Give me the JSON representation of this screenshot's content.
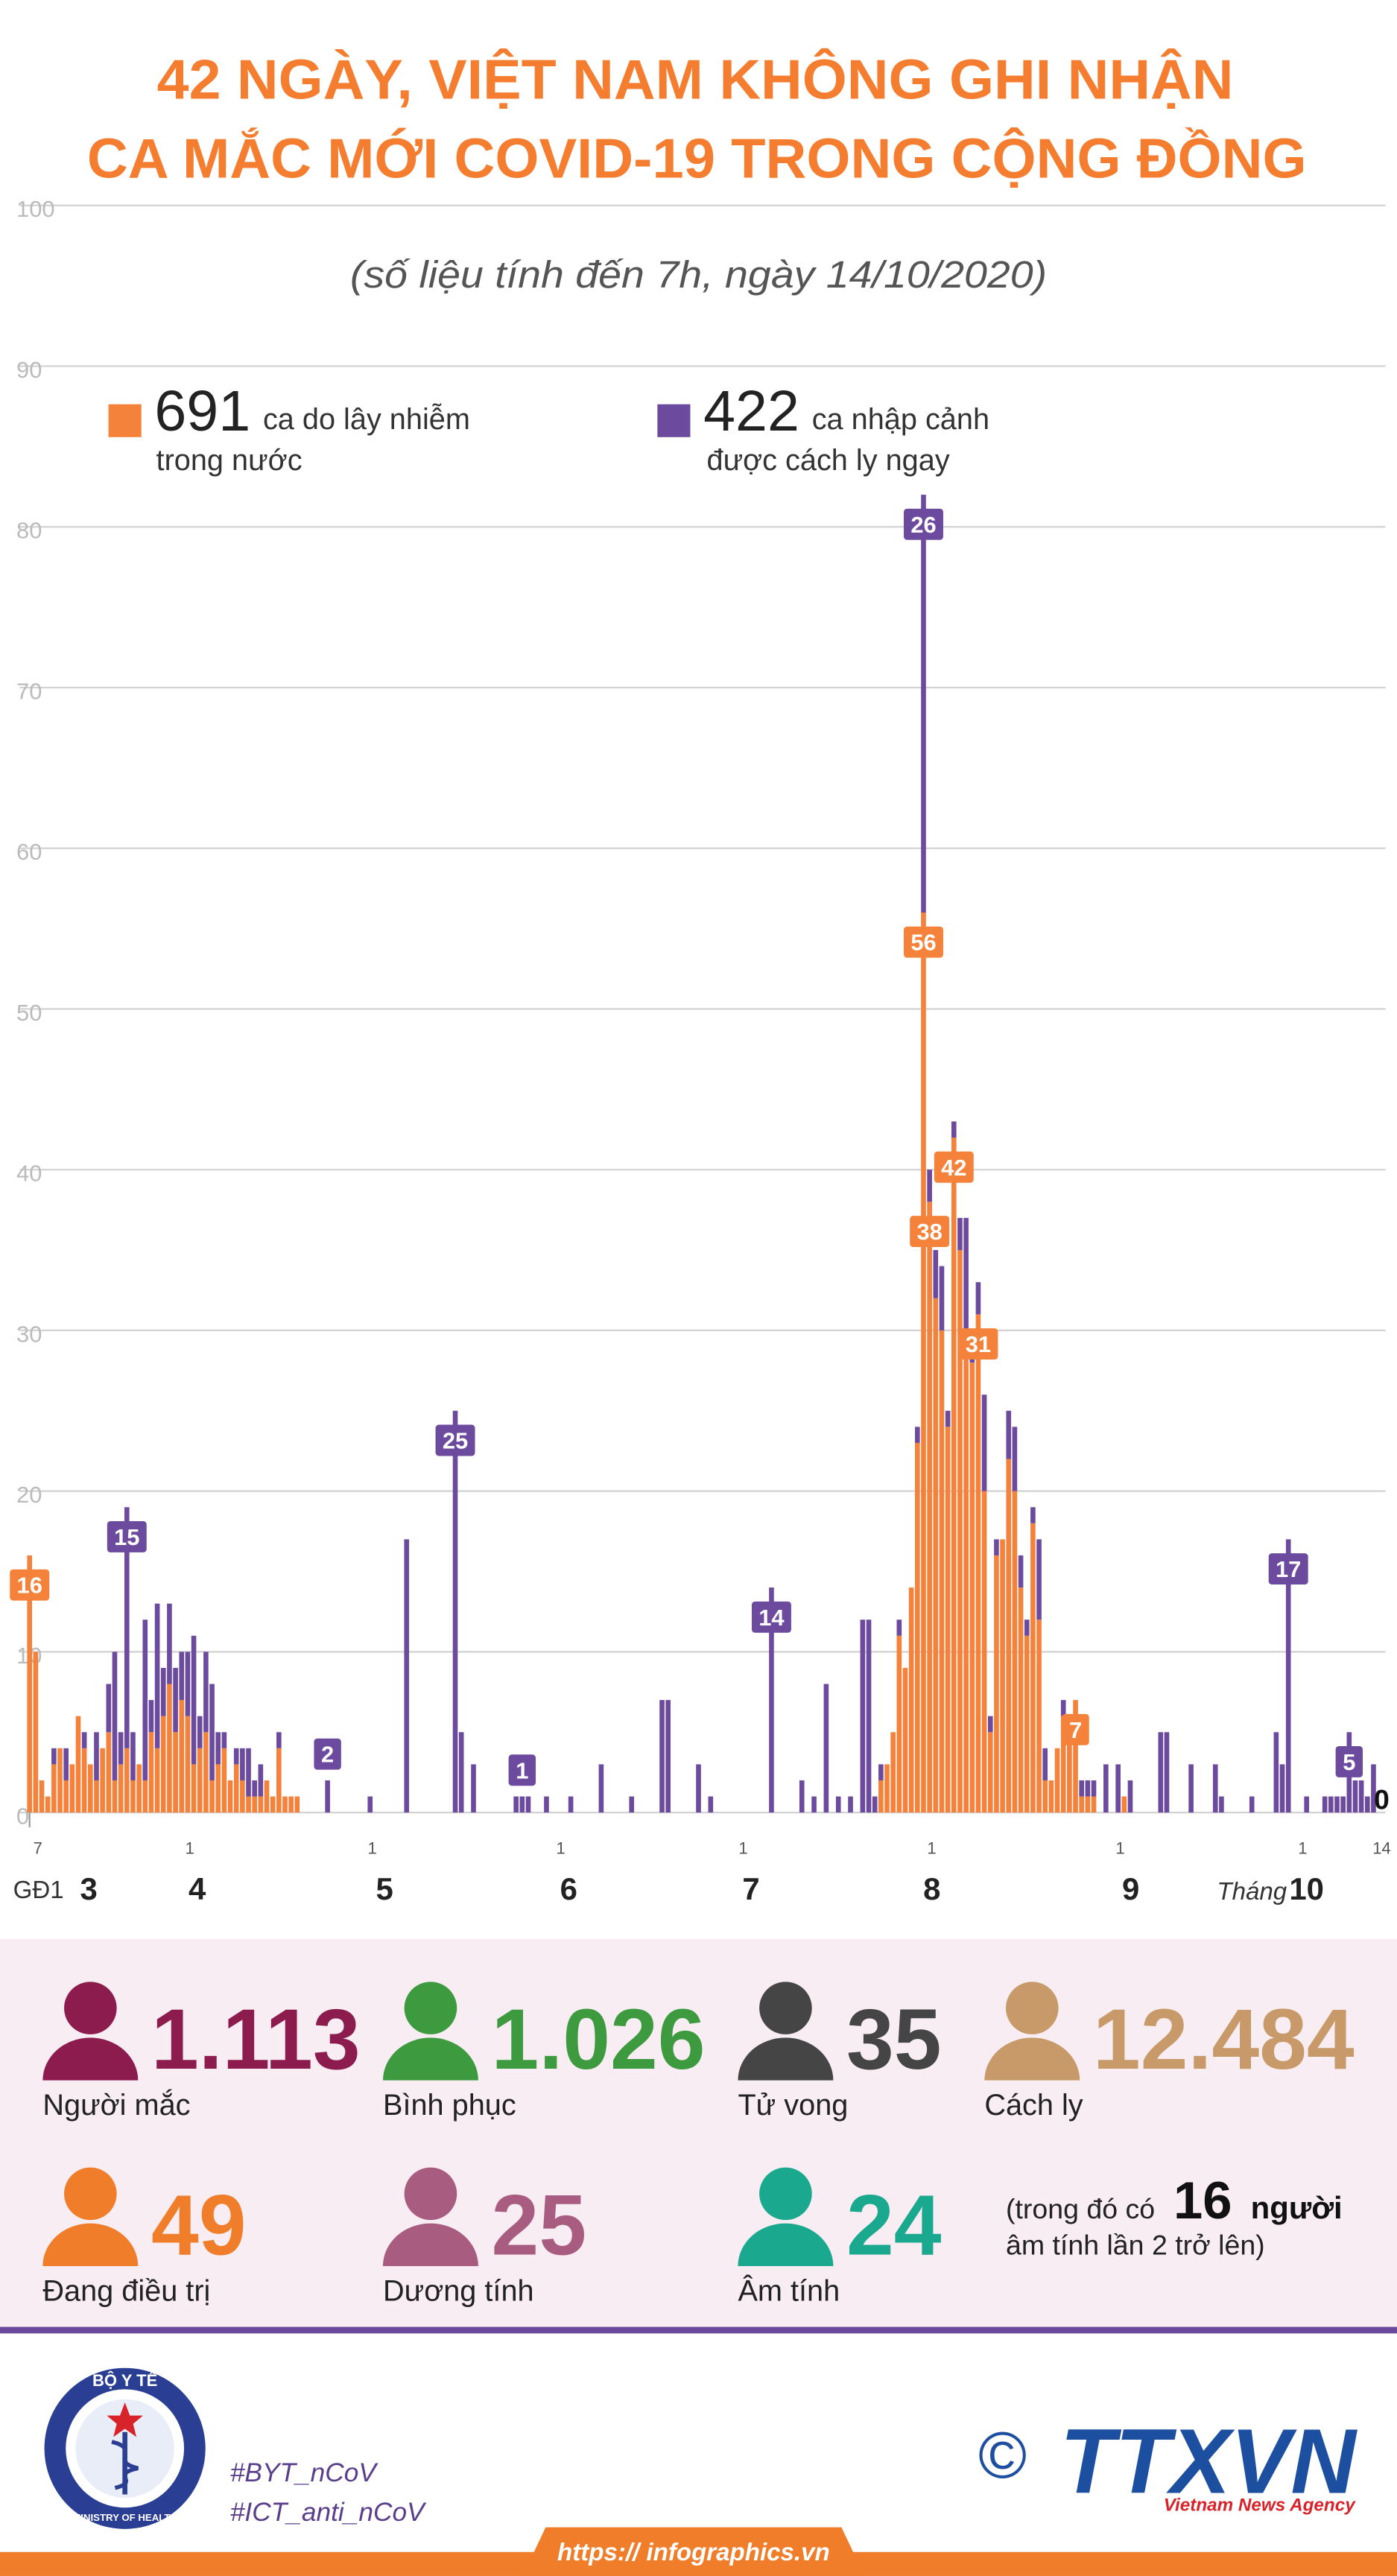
{
  "chart_data": {
    "type": "bar",
    "title": [
      "42 NGÀY, VIỆT NAM KHÔNG GHI NHẬN",
      "CA MẮC MỚI COVID-19 TRONG CỘNG ĐỒNG"
    ],
    "subtitle": "(số liệu tính đến 7h, ngày 14/10/2020)",
    "stacked": true,
    "grid": true,
    "ylim": [
      0,
      100
    ],
    "yticks": [
      0,
      10,
      20,
      30,
      40,
      50,
      60,
      70,
      80,
      90,
      100
    ],
    "categories": [
      "7",
      null,
      null,
      null,
      null,
      null,
      null,
      null,
      null,
      null,
      null,
      null,
      null,
      null,
      null,
      null,
      null,
      null,
      null,
      null,
      null,
      null,
      null,
      null,
      null,
      "1",
      null,
      null,
      null,
      null,
      null,
      null,
      null,
      null,
      null,
      null,
      null,
      null,
      null,
      null,
      null,
      null,
      null,
      null,
      null,
      null,
      null,
      null,
      null,
      null,
      null,
      null,
      null,
      null,
      null,
      "1",
      null,
      null,
      null,
      null,
      null,
      null,
      null,
      null,
      null,
      null,
      null,
      null,
      null,
      null,
      null,
      null,
      null,
      null,
      null,
      null,
      null,
      null,
      null,
      null,
      null,
      null,
      null,
      null,
      null,
      null,
      "1",
      null,
      null,
      null,
      null,
      null,
      null,
      null,
      null,
      null,
      null,
      null,
      null,
      null,
      null,
      null,
      null,
      null,
      null,
      null,
      null,
      null,
      null,
      null,
      null,
      null,
      null,
      null,
      null,
      null,
      "1",
      null,
      null,
      null,
      null,
      null,
      null,
      null,
      null,
      null,
      null,
      null,
      null,
      null,
      null,
      null,
      null,
      null,
      null,
      null,
      null,
      null,
      null,
      null,
      null,
      null,
      null,
      null,
      null,
      null,
      null,
      "1",
      null,
      null,
      null,
      null,
      null,
      null,
      null,
      null,
      null,
      null,
      null,
      null,
      null,
      null,
      null,
      null,
      null,
      null,
      null,
      null,
      null,
      null,
      null,
      null,
      null,
      null,
      null,
      null,
      null,
      null,
      "1",
      null,
      null,
      null,
      null,
      null,
      null,
      null,
      null,
      null,
      null,
      null,
      null,
      null,
      null,
      null,
      null,
      null,
      null,
      null,
      null,
      null,
      null,
      null,
      null,
      null,
      null,
      null,
      null,
      null,
      "1",
      null,
      null,
      null,
      null,
      null,
      null,
      null,
      null,
      null,
      null,
      null,
      null,
      "14"
    ],
    "phase": "GĐ1",
    "month_word": "Tháng",
    "months": [
      "3",
      "4",
      "5",
      "6",
      "7",
      "8",
      "9",
      "10"
    ],
    "series": [
      {
        "name": [
          "ca do lây nhiễm",
          "trong nước"
        ],
        "total": 691,
        "color": "#f4823a",
        "values": [
          16,
          10,
          2,
          1,
          3,
          4,
          2,
          3,
          6,
          4,
          3,
          2,
          4,
          5,
          2,
          3,
          4,
          2,
          3,
          2,
          5,
          4,
          6,
          8,
          5,
          7,
          6,
          3,
          4,
          5,
          2,
          3,
          4,
          2,
          3,
          2,
          1,
          1,
          1,
          2,
          1,
          4,
          1,
          1,
          1,
          0,
          0,
          0,
          0,
          0,
          0,
          0,
          0,
          0,
          0,
          0,
          0,
          0,
          0,
          0,
          0,
          0,
          0,
          0,
          0,
          0,
          0,
          0,
          0,
          0,
          0,
          0,
          0,
          0,
          0,
          0,
          0,
          0,
          0,
          0,
          0,
          0,
          0,
          0,
          0,
          0,
          0,
          0,
          0,
          0,
          0,
          0,
          0,
          0,
          0,
          0,
          0,
          0,
          0,
          0,
          0,
          0,
          0,
          0,
          0,
          0,
          0,
          0,
          0,
          0,
          0,
          0,
          0,
          0,
          0,
          0,
          0,
          0,
          0,
          0,
          0,
          0,
          0,
          0,
          0,
          0,
          0,
          0,
          0,
          0,
          0,
          0,
          0,
          0,
          0,
          0,
          0,
          0,
          0,
          0,
          2,
          3,
          5,
          11,
          9,
          14,
          23,
          56,
          38,
          32,
          30,
          24,
          42,
          35,
          30,
          28,
          31,
          20,
          5,
          16,
          17,
          22,
          20,
          14,
          11,
          18,
          12,
          2,
          2,
          4,
          6,
          5,
          7,
          1,
          1,
          1,
          0,
          0,
          0,
          0,
          1,
          0,
          0,
          0,
          0,
          0,
          0,
          0,
          0,
          0,
          0,
          0,
          0,
          0,
          0,
          0,
          0,
          0,
          0,
          0,
          0,
          0,
          0,
          0,
          0,
          0,
          0,
          0,
          0,
          0,
          0,
          0,
          0,
          0,
          0,
          0,
          0,
          0,
          0,
          0,
          0,
          0
        ]
      },
      {
        "name": [
          "ca nhập cảnh",
          "được cách ly ngay"
        ],
        "total": 422,
        "color": "#6c4a9e",
        "values": [
          0,
          0,
          0,
          0,
          1,
          0,
          2,
          0,
          0,
          1,
          0,
          3,
          0,
          3,
          8,
          2,
          15,
          3,
          0,
          10,
          2,
          9,
          3,
          5,
          4,
          3,
          4,
          8,
          2,
          5,
          6,
          2,
          1,
          0,
          1,
          2,
          3,
          1,
          2,
          0,
          0,
          1,
          0,
          0,
          0,
          0,
          0,
          0,
          0,
          2,
          0,
          0,
          0,
          0,
          0,
          0,
          1,
          0,
          0,
          0,
          0,
          0,
          17,
          0,
          0,
          0,
          0,
          0,
          0,
          0,
          25,
          5,
          0,
          3,
          0,
          0,
          0,
          0,
          0,
          0,
          1,
          1,
          1,
          0,
          0,
          1,
          0,
          0,
          0,
          1,
          0,
          0,
          0,
          0,
          3,
          0,
          0,
          0,
          0,
          1,
          0,
          0,
          0,
          0,
          7,
          7,
          0,
          0,
          0,
          0,
          3,
          0,
          1,
          0,
          0,
          0,
          0,
          0,
          0,
          0,
          0,
          0,
          14,
          0,
          0,
          0,
          0,
          2,
          0,
          1,
          0,
          8,
          0,
          1,
          0,
          1,
          0,
          12,
          12,
          1,
          1,
          0,
          0,
          1,
          0,
          0,
          1,
          26,
          2,
          3,
          4,
          1,
          1,
          2,
          7,
          1,
          2,
          6,
          1,
          1,
          0,
          3,
          4,
          2,
          1,
          1,
          5,
          2,
          0,
          0,
          1,
          0,
          0,
          1,
          1,
          1,
          0,
          3,
          0,
          3,
          0,
          2,
          0,
          0,
          0,
          0,
          5,
          5,
          0,
          0,
          0,
          3,
          0,
          0,
          0,
          3,
          1,
          0,
          0,
          0,
          0,
          1,
          0,
          0,
          0,
          5,
          3,
          17,
          0,
          0,
          1,
          0,
          0,
          1,
          1,
          1,
          1,
          5,
          2,
          2,
          1,
          3
        ]
      }
    ],
    "annotations": [
      [
        0,
        0
      ],
      [
        1,
        16
      ],
      [
        1,
        49
      ],
      [
        1,
        70
      ],
      [
        1,
        81
      ],
      [
        1,
        122
      ],
      [
        1,
        147
      ],
      [
        0,
        147
      ],
      [
        0,
        148
      ],
      [
        0,
        152
      ],
      [
        0,
        156
      ],
      [
        0,
        172
      ],
      [
        1,
        207
      ],
      [
        1,
        217
      ],
      [
        0,
        221
      ]
    ]
  },
  "stats": [
    {
      "value": "1.113",
      "label": "Người mắc",
      "color": "#8b1c4d"
    },
    {
      "value": "1.026",
      "label": "Bình phục",
      "color": "#3d9a3f"
    },
    {
      "value": "35",
      "label": "Tử vong",
      "color": "#454545"
    },
    {
      "value": "12.484",
      "label": "Cách ly",
      "color": "#c89a6a"
    },
    {
      "value": "49",
      "label": "Đang điều trị",
      "color": "#f07d2a"
    },
    {
      "value": "25",
      "label": "Dương tính",
      "color": "#a85c7f"
    },
    {
      "value": "24",
      "label": "Âm tính",
      "color": "#1aa88f"
    }
  ],
  "note": {
    "before": "(trong đó có",
    "number": "16",
    "after": "người",
    "line2": "âm tính lần 2 trở lên)"
  },
  "footer": {
    "logo_top": "BỘ Y TẾ",
    "logo_bottom": "MINISTRY OF HEALTH",
    "hashtags": [
      "#BYT_nCoV",
      "#ICT_anti_nCoV"
    ],
    "copyright": "©",
    "agency": "TTXVN",
    "agency_en": "Vietnam News Agency",
    "url": "https:// infographics.vn"
  }
}
